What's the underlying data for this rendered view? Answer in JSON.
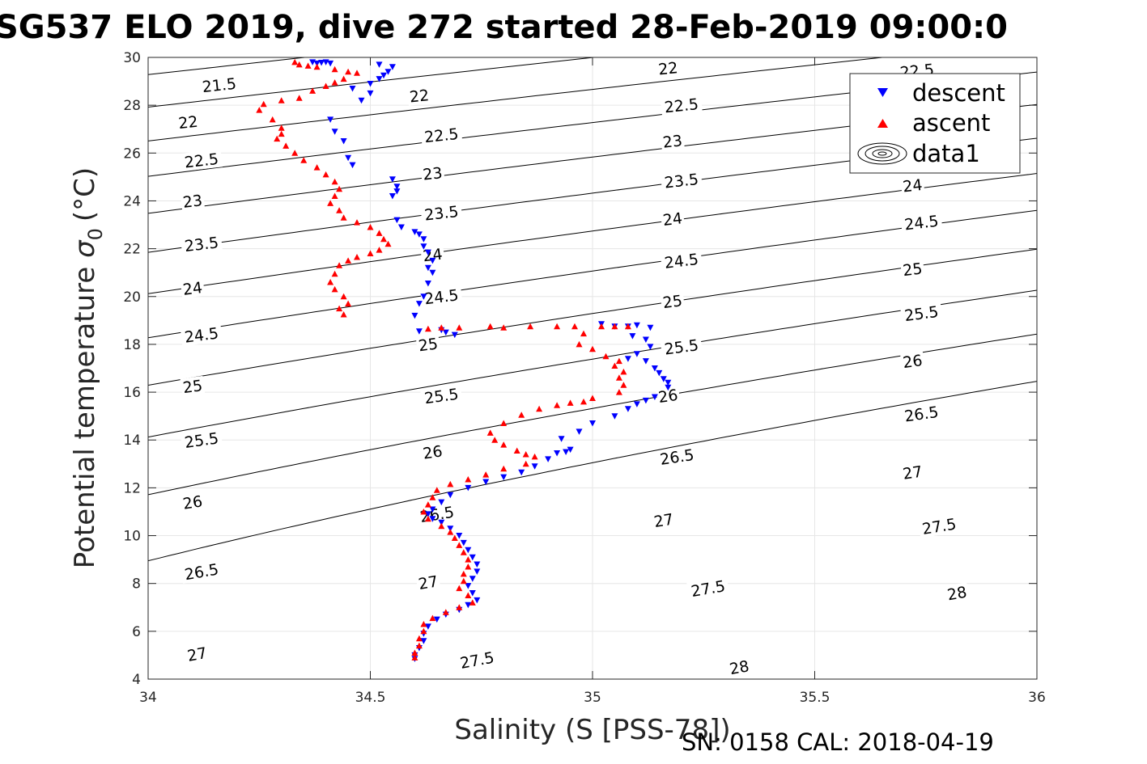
{
  "title": "SG537 ELO 2019, dive 272 started 28-Feb-2019 09:00:0",
  "footer": "SN: 0158  CAL: 2018-04-19",
  "chart_data": {
    "type": "scatter",
    "xlabel": "Salinity (S [PSS-78])",
    "ylabel": "Potential temperature",
    "ylabel_symbol": "σ",
    "ylabel_subscript": "0",
    "ylabel_unit": "(°C)",
    "xlim": [
      34,
      36
    ],
    "ylim": [
      4,
      30
    ],
    "xticks": [
      34,
      34.5,
      35,
      35.5,
      36
    ],
    "xtick_labels": [
      "34",
      "34.5",
      "35",
      "35.5",
      "36"
    ],
    "yticks": [
      4,
      6,
      8,
      10,
      12,
      14,
      16,
      18,
      20,
      22,
      24,
      26,
      28,
      30
    ],
    "ytick_labels": [
      "4",
      "6",
      "8",
      "10",
      "12",
      "14",
      "16",
      "18",
      "20",
      "22",
      "24",
      "26",
      "28",
      "30"
    ],
    "grid": true,
    "legend_position": "top-right",
    "legend": [
      "descent",
      "ascent",
      "data1"
    ],
    "contour_levels": [
      21.5,
      22,
      22.5,
      23,
      23.5,
      24,
      24.5,
      25,
      25.5,
      26,
      26.5,
      27,
      27.5,
      28
    ],
    "contour_labels": [
      {
        "text": "21.5",
        "s": 34.16,
        "t": 28.85
      },
      {
        "text": "22",
        "s": 34.09,
        "t": 27.3
      },
      {
        "text": "22.5",
        "s": 34.12,
        "t": 25.7
      },
      {
        "text": "23",
        "s": 34.1,
        "t": 24.0
      },
      {
        "text": "23.5",
        "s": 34.12,
        "t": 22.2
      },
      {
        "text": "24",
        "s": 34.1,
        "t": 20.35
      },
      {
        "text": "24.5",
        "s": 34.12,
        "t": 18.4
      },
      {
        "text": "25",
        "s": 34.1,
        "t": 16.25
      },
      {
        "text": "25.5",
        "s": 34.12,
        "t": 14.0
      },
      {
        "text": "26",
        "s": 34.1,
        "t": 11.4
      },
      {
        "text": "26.5",
        "s": 34.12,
        "t": 8.5
      },
      {
        "text": "27",
        "s": 34.11,
        "t": 5.05
      },
      {
        "text": "22",
        "s": 34.61,
        "t": 28.4
      },
      {
        "text": "22.5",
        "s": 34.66,
        "t": 26.75
      },
      {
        "text": "23",
        "s": 34.64,
        "t": 25.15
      },
      {
        "text": "23.5",
        "s": 34.66,
        "t": 23.5
      },
      {
        "text": "24",
        "s": 34.64,
        "t": 21.75
      },
      {
        "text": "24.5",
        "s": 34.66,
        "t": 20.0
      },
      {
        "text": "25",
        "s": 34.63,
        "t": 18.0
      },
      {
        "text": "25.5",
        "s": 34.66,
        "t": 15.85
      },
      {
        "text": "26",
        "s": 34.64,
        "t": 13.5
      },
      {
        "text": "26.5",
        "s": 34.65,
        "t": 10.9
      },
      {
        "text": "27",
        "s": 34.63,
        "t": 8.05
      },
      {
        "text": "27.5",
        "s": 34.74,
        "t": 4.8
      },
      {
        "text": "22",
        "s": 35.17,
        "t": 29.55
      },
      {
        "text": "22.5",
        "s": 35.2,
        "t": 28.0
      },
      {
        "text": "23",
        "s": 35.18,
        "t": 26.5
      },
      {
        "text": "23.5",
        "s": 35.2,
        "t": 24.85
      },
      {
        "text": "24",
        "s": 35.18,
        "t": 23.25
      },
      {
        "text": "24.5",
        "s": 35.2,
        "t": 21.5
      },
      {
        "text": "25",
        "s": 35.18,
        "t": 19.8
      },
      {
        "text": "25.5",
        "s": 35.2,
        "t": 17.9
      },
      {
        "text": "26",
        "s": 35.17,
        "t": 15.85
      },
      {
        "text": "26.5",
        "s": 35.19,
        "t": 13.3
      },
      {
        "text": "27",
        "s": 35.16,
        "t": 10.65
      },
      {
        "text": "27.5",
        "s": 35.26,
        "t": 7.8
      },
      {
        "text": "28",
        "s": 35.33,
        "t": 4.5
      },
      {
        "text": "22.5",
        "s": 35.73,
        "t": 29.45
      },
      {
        "text": "24",
        "s": 35.72,
        "t": 24.65
      },
      {
        "text": "24.5",
        "s": 35.74,
        "t": 23.1
      },
      {
        "text": "25",
        "s": 35.72,
        "t": 21.15
      },
      {
        "text": "25.5",
        "s": 35.74,
        "t": 19.3
      },
      {
        "text": "26",
        "s": 35.72,
        "t": 17.3
      },
      {
        "text": "26.5",
        "s": 35.74,
        "t": 15.1
      },
      {
        "text": "27",
        "s": 35.72,
        "t": 12.65
      },
      {
        "text": "27.5",
        "s": 35.78,
        "t": 10.4
      },
      {
        "text": "28",
        "s": 35.82,
        "t": 7.6
      }
    ],
    "series": [
      {
        "name": "descent",
        "marker": "triangle-down",
        "color": "#0000ff",
        "points": [
          [
            34.37,
            29.8
          ],
          [
            34.38,
            29.75
          ],
          [
            34.39,
            29.78
          ],
          [
            34.4,
            29.8
          ],
          [
            34.41,
            29.75
          ],
          [
            34.52,
            29.7
          ],
          [
            34.55,
            29.6
          ],
          [
            34.54,
            29.4
          ],
          [
            34.53,
            29.25
          ],
          [
            34.52,
            29.1
          ],
          [
            34.5,
            28.9
          ],
          [
            34.5,
            28.5
          ],
          [
            34.46,
            28.7
          ],
          [
            34.48,
            28.2
          ],
          [
            34.41,
            27.4
          ],
          [
            34.42,
            26.9
          ],
          [
            34.44,
            26.5
          ],
          [
            34.45,
            25.8
          ],
          [
            34.46,
            25.5
          ],
          [
            34.55,
            24.9
          ],
          [
            34.56,
            24.6
          ],
          [
            34.56,
            24.4
          ],
          [
            34.55,
            24.2
          ],
          [
            34.56,
            23.2
          ],
          [
            34.57,
            22.9
          ],
          [
            34.6,
            22.7
          ],
          [
            34.61,
            22.6
          ],
          [
            34.62,
            22.4
          ],
          [
            34.62,
            22.1
          ],
          [
            34.63,
            21.85
          ],
          [
            34.64,
            21.5
          ],
          [
            34.63,
            21.2
          ],
          [
            34.64,
            21.0
          ],
          [
            34.63,
            20.55
          ],
          [
            34.62,
            20.0
          ],
          [
            34.61,
            19.7
          ],
          [
            34.6,
            19.2
          ],
          [
            34.61,
            18.55
          ],
          [
            34.66,
            18.6
          ],
          [
            34.67,
            18.5
          ],
          [
            34.69,
            18.4
          ],
          [
            35.02,
            18.85
          ],
          [
            35.05,
            18.75
          ],
          [
            35.08,
            18.75
          ],
          [
            35.1,
            18.8
          ],
          [
            35.13,
            18.7
          ],
          [
            35.09,
            18.35
          ],
          [
            35.12,
            18.2
          ],
          [
            35.13,
            17.9
          ],
          [
            35.1,
            17.6
          ],
          [
            35.08,
            17.4
          ],
          [
            35.12,
            17.3
          ],
          [
            35.14,
            17.0
          ],
          [
            35.15,
            16.8
          ],
          [
            35.16,
            16.55
          ],
          [
            35.17,
            16.4
          ],
          [
            35.17,
            16.2
          ],
          [
            35.14,
            15.8
          ],
          [
            35.12,
            15.65
          ],
          [
            35.1,
            15.5
          ],
          [
            35.08,
            15.3
          ],
          [
            35.05,
            15.0
          ],
          [
            35.0,
            14.7
          ],
          [
            34.97,
            14.35
          ],
          [
            34.93,
            14.05
          ],
          [
            34.95,
            13.6
          ],
          [
            34.94,
            13.5
          ],
          [
            34.92,
            13.45
          ],
          [
            34.9,
            13.2
          ],
          [
            34.87,
            12.9
          ],
          [
            34.84,
            12.65
          ],
          [
            34.8,
            12.45
          ],
          [
            34.76,
            12.25
          ],
          [
            34.72,
            12.0
          ],
          [
            34.68,
            11.7
          ],
          [
            34.66,
            11.4
          ],
          [
            34.64,
            11.1
          ],
          [
            34.63,
            10.9
          ],
          [
            34.64,
            10.7
          ],
          [
            34.66,
            10.55
          ],
          [
            34.68,
            10.3
          ],
          [
            34.7,
            10.0
          ],
          [
            34.71,
            9.7
          ],
          [
            34.72,
            9.4
          ],
          [
            34.73,
            9.1
          ],
          [
            34.74,
            8.8
          ],
          [
            34.74,
            8.5
          ],
          [
            34.73,
            8.2
          ],
          [
            34.72,
            7.9
          ],
          [
            34.73,
            7.6
          ],
          [
            34.74,
            7.3
          ],
          [
            34.72,
            7.1
          ],
          [
            34.7,
            6.9
          ],
          [
            34.67,
            6.7
          ],
          [
            34.65,
            6.5
          ],
          [
            34.63,
            6.2
          ],
          [
            34.62,
            5.9
          ],
          [
            34.62,
            5.6
          ],
          [
            34.61,
            5.3
          ],
          [
            34.6,
            5.0
          ],
          [
            34.6,
            4.85
          ]
        ]
      },
      {
        "name": "ascent",
        "marker": "triangle-up",
        "color": "#ff0000",
        "points": [
          [
            34.33,
            29.8
          ],
          [
            34.34,
            29.7
          ],
          [
            34.36,
            29.65
          ],
          [
            34.38,
            29.6
          ],
          [
            34.42,
            29.5
          ],
          [
            34.45,
            29.4
          ],
          [
            34.47,
            29.35
          ],
          [
            34.44,
            29.1
          ],
          [
            34.42,
            28.95
          ],
          [
            34.4,
            28.8
          ],
          [
            34.37,
            28.6
          ],
          [
            34.34,
            28.3
          ],
          [
            34.3,
            28.2
          ],
          [
            34.26,
            28.05
          ],
          [
            34.25,
            27.8
          ],
          [
            34.28,
            27.4
          ],
          [
            34.3,
            27.05
          ],
          [
            34.3,
            26.8
          ],
          [
            34.29,
            26.6
          ],
          [
            34.31,
            26.3
          ],
          [
            34.33,
            26.0
          ],
          [
            34.35,
            25.7
          ],
          [
            34.38,
            25.4
          ],
          [
            34.4,
            25.1
          ],
          [
            34.42,
            24.8
          ],
          [
            34.43,
            24.5
          ],
          [
            34.42,
            24.2
          ],
          [
            34.41,
            23.9
          ],
          [
            34.43,
            23.6
          ],
          [
            34.44,
            23.3
          ],
          [
            34.47,
            23.1
          ],
          [
            34.5,
            22.9
          ],
          [
            34.52,
            22.65
          ],
          [
            34.53,
            22.4
          ],
          [
            34.54,
            22.2
          ],
          [
            34.52,
            21.95
          ],
          [
            34.5,
            21.8
          ],
          [
            34.47,
            21.65
          ],
          [
            34.45,
            21.5
          ],
          [
            34.43,
            21.3
          ],
          [
            34.42,
            20.95
          ],
          [
            34.41,
            20.6
          ],
          [
            34.42,
            20.3
          ],
          [
            34.44,
            20.0
          ],
          [
            34.45,
            19.7
          ],
          [
            34.43,
            19.5
          ],
          [
            34.44,
            19.25
          ],
          [
            34.63,
            18.65
          ],
          [
            34.66,
            18.7
          ],
          [
            34.7,
            18.7
          ],
          [
            34.77,
            18.75
          ],
          [
            34.8,
            18.7
          ],
          [
            34.86,
            18.75
          ],
          [
            34.92,
            18.75
          ],
          [
            34.96,
            18.75
          ],
          [
            35.02,
            18.75
          ],
          [
            35.05,
            18.75
          ],
          [
            35.08,
            18.75
          ],
          [
            34.98,
            18.45
          ],
          [
            34.97,
            18.0
          ],
          [
            35.0,
            17.8
          ],
          [
            35.03,
            17.5
          ],
          [
            35.06,
            17.3
          ],
          [
            35.05,
            17.1
          ],
          [
            35.07,
            16.85
          ],
          [
            35.06,
            16.6
          ],
          [
            35.07,
            16.3
          ],
          [
            35.06,
            16.0
          ],
          [
            35.0,
            15.75
          ],
          [
            34.98,
            15.6
          ],
          [
            34.95,
            15.55
          ],
          [
            34.92,
            15.45
          ],
          [
            34.88,
            15.3
          ],
          [
            34.84,
            15.05
          ],
          [
            34.8,
            14.7
          ],
          [
            34.77,
            14.3
          ],
          [
            34.78,
            14.0
          ],
          [
            34.8,
            13.8
          ],
          [
            34.83,
            13.55
          ],
          [
            34.85,
            13.4
          ],
          [
            34.87,
            13.3
          ],
          [
            34.85,
            13.0
          ],
          [
            34.8,
            12.8
          ],
          [
            34.76,
            12.55
          ],
          [
            34.72,
            12.35
          ],
          [
            34.68,
            12.15
          ],
          [
            34.65,
            11.9
          ],
          [
            34.64,
            11.6
          ],
          [
            34.63,
            11.3
          ],
          [
            34.62,
            11.0
          ],
          [
            34.63,
            10.7
          ],
          [
            34.66,
            10.4
          ],
          [
            34.68,
            10.15
          ],
          [
            34.69,
            9.9
          ],
          [
            34.7,
            9.6
          ],
          [
            34.71,
            9.3
          ],
          [
            34.72,
            9.0
          ],
          [
            34.72,
            8.7
          ],
          [
            34.71,
            8.4
          ],
          [
            34.71,
            8.1
          ],
          [
            34.7,
            7.8
          ],
          [
            34.72,
            7.5
          ],
          [
            34.73,
            7.2
          ],
          [
            34.7,
            7.0
          ],
          [
            34.67,
            6.8
          ],
          [
            34.64,
            6.55
          ],
          [
            34.62,
            6.3
          ],
          [
            34.62,
            6.0
          ],
          [
            34.61,
            5.7
          ],
          [
            34.61,
            5.4
          ],
          [
            34.6,
            5.1
          ],
          [
            34.6,
            4.9
          ]
        ]
      },
      {
        "name": "data1",
        "marker": "contour"
      }
    ]
  }
}
